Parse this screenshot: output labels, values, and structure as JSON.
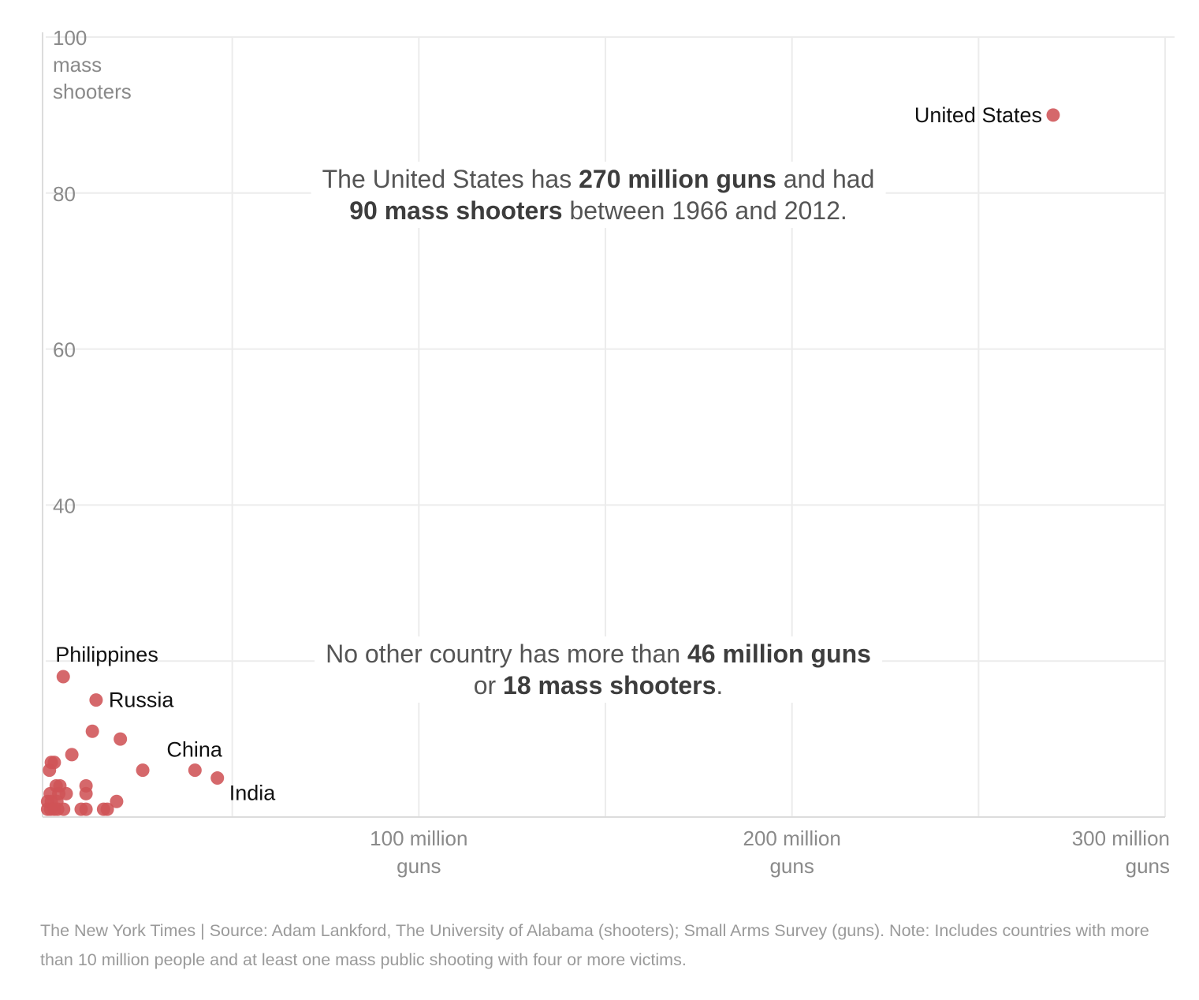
{
  "chart_data": {
    "type": "scatter",
    "x_unit": "guns",
    "y_unit": "mass shooters",
    "xlim": [
      0,
      300000000
    ],
    "ylim": [
      0,
      100
    ],
    "grid": true,
    "y_ticks": [
      {
        "value": 100,
        "lines": [
          "100",
          "mass",
          "shooters"
        ]
      },
      {
        "value": 80,
        "lines": [
          "80"
        ]
      },
      {
        "value": 60,
        "lines": [
          "60"
        ]
      },
      {
        "value": 40,
        "lines": [
          "40"
        ]
      }
    ],
    "x_ticks": [
      {
        "value": 100000000,
        "lines": [
          "100 million",
          "guns"
        ]
      },
      {
        "value": 200000000,
        "lines": [
          "200 million",
          "guns"
        ]
      },
      {
        "value": 300000000,
        "lines": [
          "300 million",
          "guns"
        ]
      }
    ],
    "point_color": "#cf5357",
    "points": [
      {
        "label": "United States",
        "x": 270000000,
        "y": 90
      },
      {
        "label": "Philippines",
        "x": 4700000,
        "y": 18
      },
      {
        "label": "Russia",
        "x": 13500000,
        "y": 15
      },
      {
        "label": "China",
        "x": 40000000,
        "y": 6
      },
      {
        "label": "India",
        "x": 46000000,
        "y": 5
      },
      {
        "label": "",
        "x": 12500000,
        "y": 11
      },
      {
        "label": "",
        "x": 20000000,
        "y": 10
      },
      {
        "label": "",
        "x": 26000000,
        "y": 6
      },
      {
        "label": "",
        "x": 7000000,
        "y": 8
      },
      {
        "label": "",
        "x": 1500000,
        "y": 7
      },
      {
        "label": "",
        "x": 2300000,
        "y": 7
      },
      {
        "label": "",
        "x": 1000000,
        "y": 6
      },
      {
        "label": "",
        "x": 2800000,
        "y": 4
      },
      {
        "label": "",
        "x": 3800000,
        "y": 4
      },
      {
        "label": "",
        "x": 10800000,
        "y": 4
      },
      {
        "label": "",
        "x": 1200000,
        "y": 3
      },
      {
        "label": "",
        "x": 3500000,
        "y": 3
      },
      {
        "label": "",
        "x": 5500000,
        "y": 3
      },
      {
        "label": "",
        "x": 10800000,
        "y": 3
      },
      {
        "label": "",
        "x": 19000000,
        "y": 2
      },
      {
        "label": "",
        "x": 500000,
        "y": 2
      },
      {
        "label": "",
        "x": 1500000,
        "y": 2
      },
      {
        "label": "",
        "x": 3000000,
        "y": 2
      },
      {
        "label": "",
        "x": 500000,
        "y": 1
      },
      {
        "label": "",
        "x": 1300000,
        "y": 1
      },
      {
        "label": "",
        "x": 2300000,
        "y": 1
      },
      {
        "label": "",
        "x": 3200000,
        "y": 1
      },
      {
        "label": "",
        "x": 4800000,
        "y": 1
      },
      {
        "label": "",
        "x": 9500000,
        "y": 1
      },
      {
        "label": "",
        "x": 10800000,
        "y": 1
      },
      {
        "label": "",
        "x": 15500000,
        "y": 1
      },
      {
        "label": "",
        "x": 16500000,
        "y": 1
      }
    ],
    "annotations": [
      {
        "lines": [
          [
            {
              "t": "The United States has "
            },
            {
              "t": "270 million guns",
              "b": true
            },
            {
              "t": " and had"
            }
          ],
          [
            {
              "t": "90 mass shooters",
              "b": true
            },
            {
              "t": " between 1966 and 2012."
            }
          ]
        ]
      },
      {
        "lines": [
          [
            {
              "t": "No other country has more than "
            },
            {
              "t": "46 million guns",
              "b": true
            }
          ],
          [
            {
              "t": "or "
            },
            {
              "t": "18 mass shooters",
              "b": true
            },
            {
              "t": "."
            }
          ]
        ]
      }
    ]
  },
  "footer": {
    "text": "The New York Times  |  Source: Adam Lankford, The University of Alabama (shooters); Small Arms Survey (guns). Note: Includes countries with more than 10 million people and at least one mass public shooting with four or more victims."
  }
}
